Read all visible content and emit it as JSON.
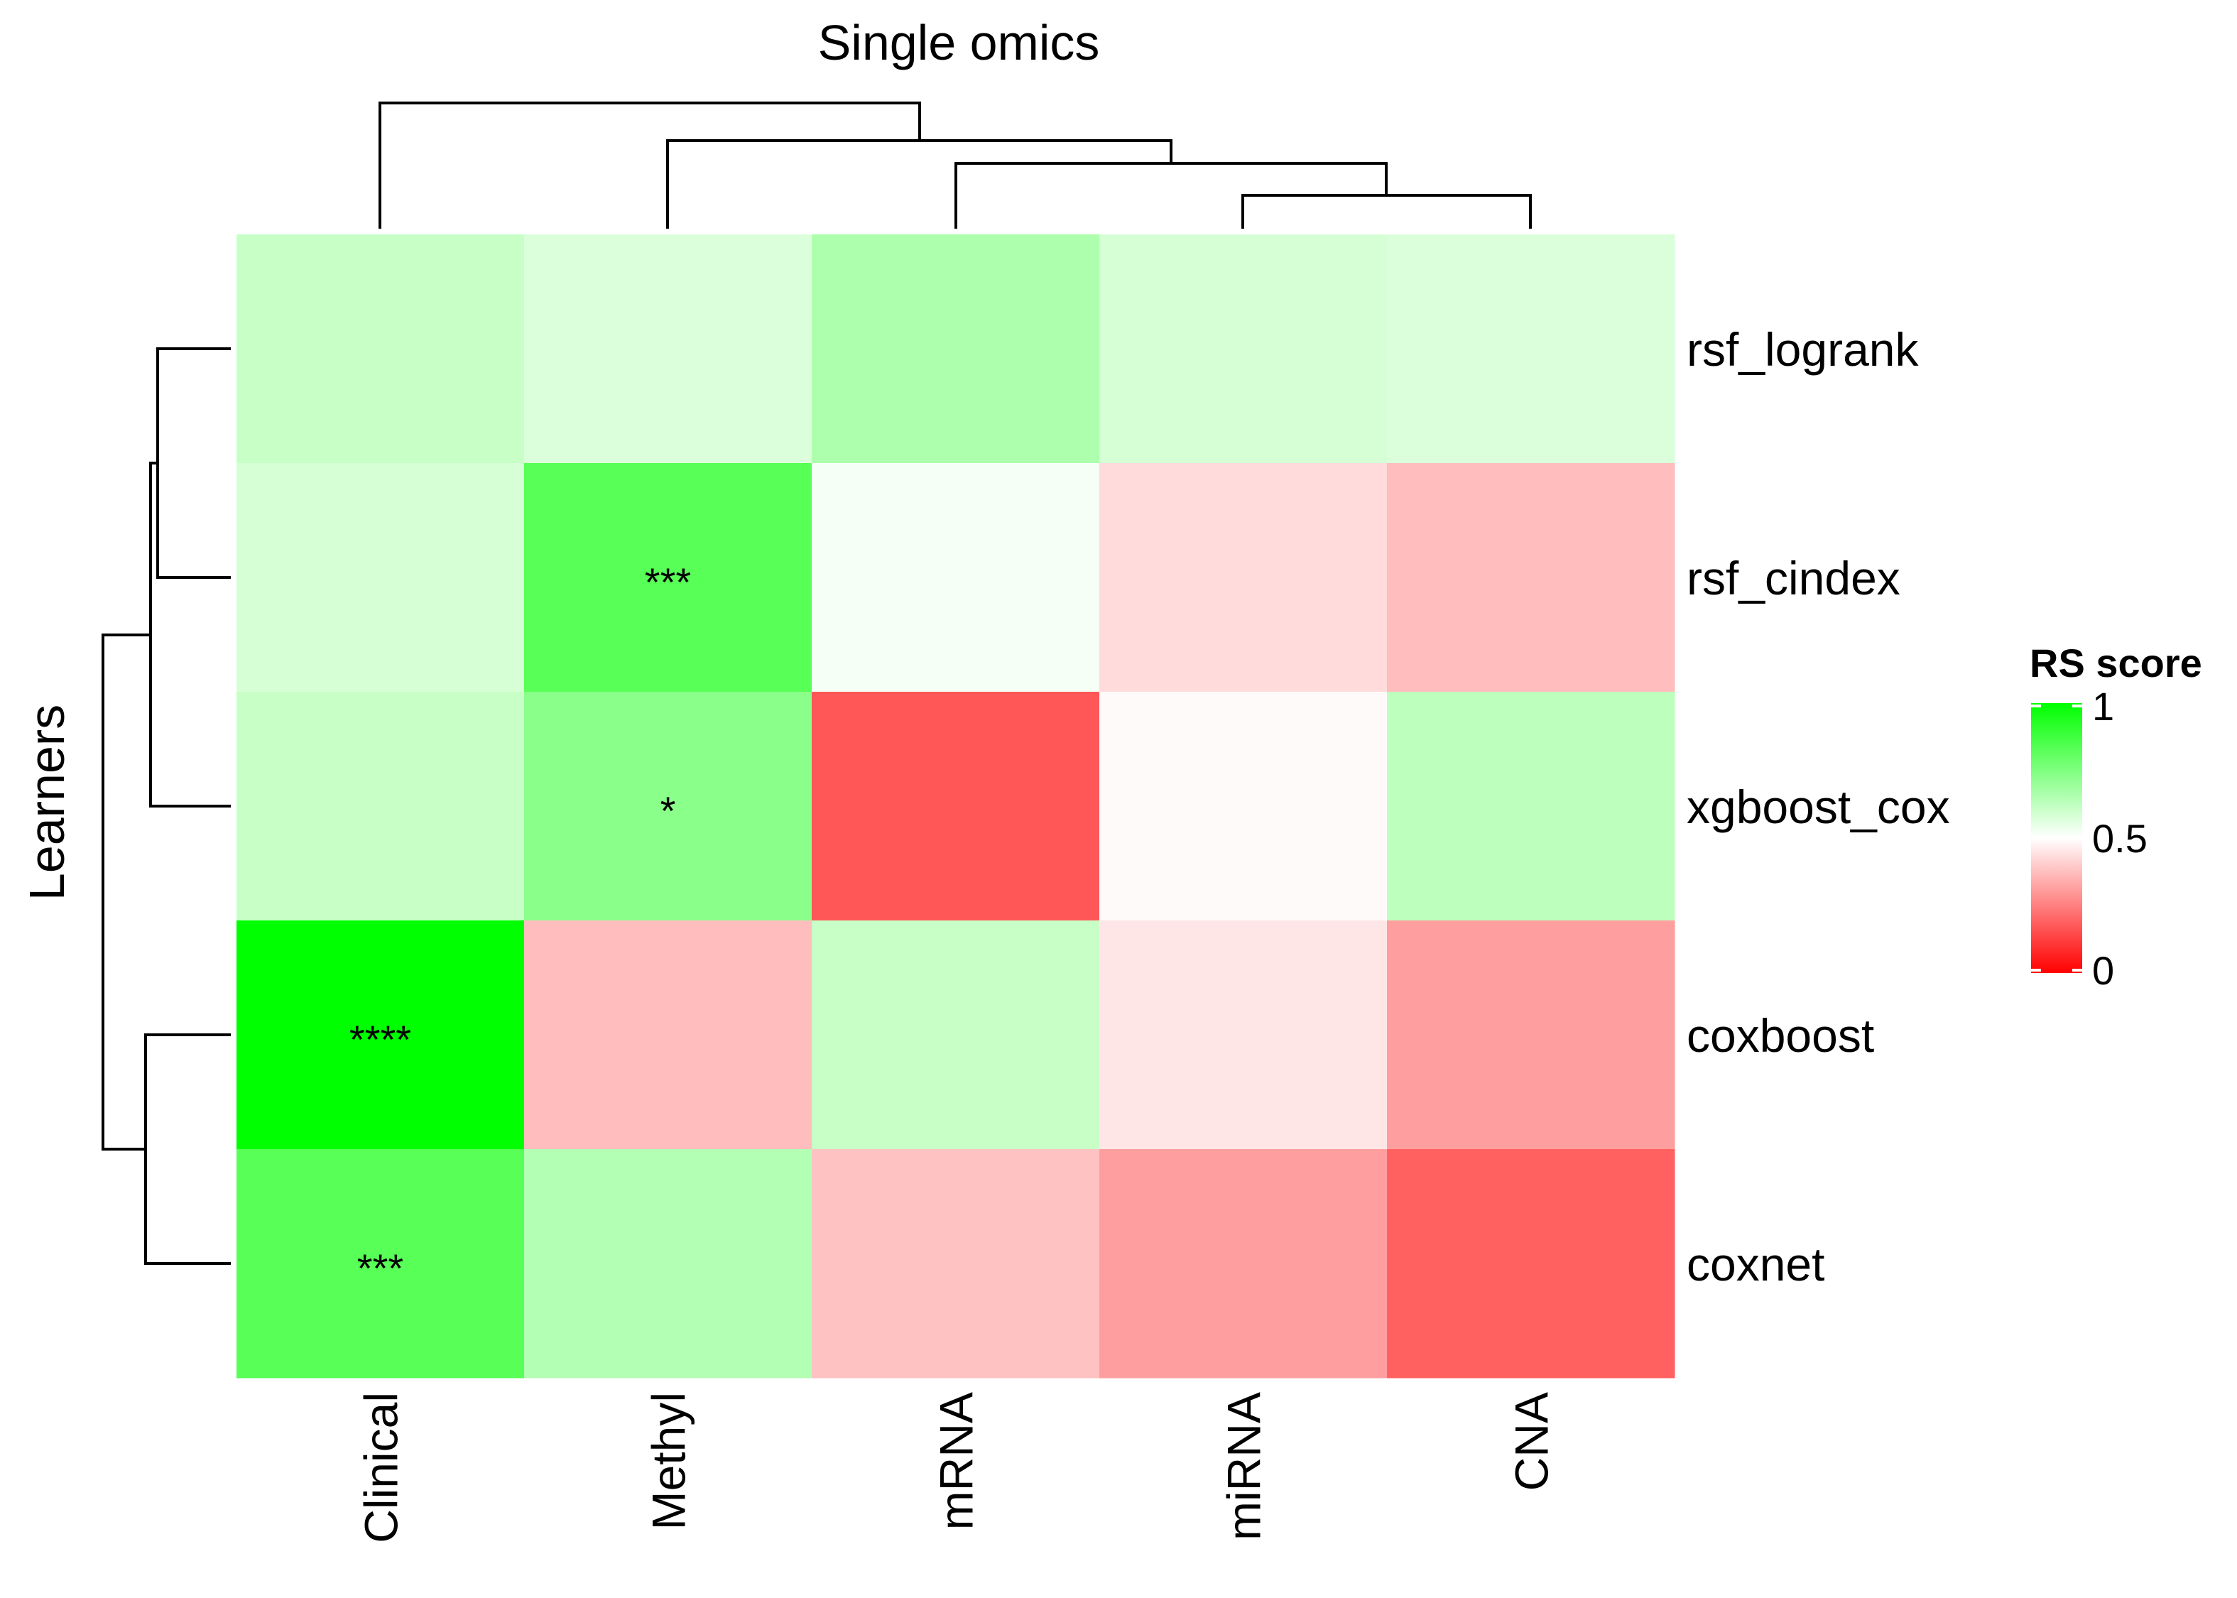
{
  "chart_data": {
    "type": "heatmap",
    "title": "Single omics",
    "xlabel": "",
    "ylabel": "Learners",
    "columns": [
      "Clinical",
      "Methyl",
      "mRNA",
      "miRNA",
      "CNA"
    ],
    "rows": [
      "rsf_logrank",
      "rsf_cindex",
      "xgboost_cox",
      "coxboost",
      "coxnet"
    ],
    "values": [
      [
        0.61,
        0.57,
        0.66,
        0.58,
        0.57
      ],
      [
        0.58,
        0.83,
        0.52,
        0.43,
        0.37
      ],
      [
        0.61,
        0.73,
        0.17,
        0.49,
        0.63
      ],
      [
        1.0,
        0.37,
        0.61,
        0.45,
        0.31
      ],
      [
        0.83,
        0.65,
        0.38,
        0.31,
        0.19
      ]
    ],
    "annotations": [
      [
        "",
        "",
        "",
        "",
        ""
      ],
      [
        "",
        "***",
        "",
        "",
        ""
      ],
      [
        "",
        "*",
        "",
        "",
        ""
      ],
      [
        "****",
        "",
        "",
        "",
        ""
      ],
      [
        "***",
        "",
        "",
        "",
        ""
      ]
    ],
    "legend": {
      "title": "RS score",
      "ticks": [
        {
          "value": 1,
          "label": "1"
        },
        {
          "value": 0.5,
          "label": "0.5"
        },
        {
          "value": 0,
          "label": "0"
        }
      ],
      "colors": {
        "low": "#ff0000",
        "mid": "#ffffff",
        "high": "#00ff00"
      },
      "range": [
        0,
        1
      ],
      "placement": "right"
    },
    "column_dendrogram": [
      [
        "miRNA",
        "CNA"
      ],
      [
        "mRNA",
        "miRNA+CNA"
      ],
      [
        "Methyl",
        "mRNA+miRNA+CNA"
      ],
      [
        "Clinical",
        "rest"
      ]
    ],
    "row_dendrogram": [
      [
        "rsf_logrank",
        "rsf_cindex"
      ],
      [
        "rsf_logrank+rsf_cindex",
        "xgboost_cox"
      ],
      [
        "coxboost",
        "coxnet"
      ],
      [
        "top",
        "bottom"
      ]
    ]
  }
}
